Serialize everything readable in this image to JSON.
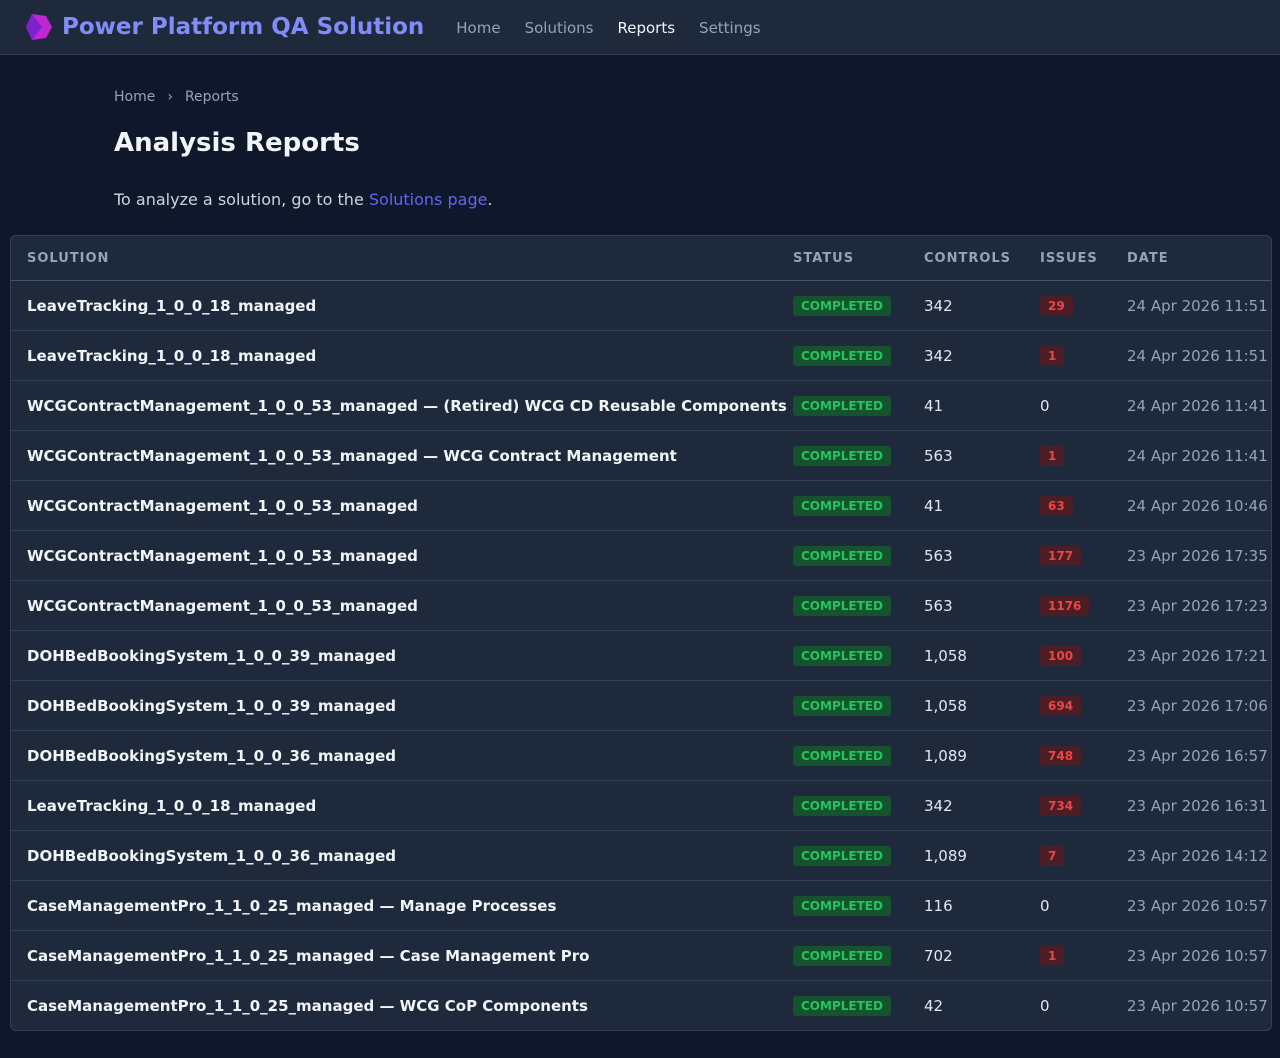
{
  "header": {
    "title": "Power Platform QA Solution",
    "nav": [
      "Home",
      "Solutions",
      "Reports",
      "Settings"
    ],
    "active_nav": 2
  },
  "breadcrumb": {
    "items": [
      "Home",
      "Reports"
    ],
    "separator": "›"
  },
  "page_title": "Analysis Reports",
  "intro": {
    "text": "To analyze a solution, go to the",
    "link": "Solutions page",
    "suffix": "."
  },
  "table": {
    "columns": [
      "SOLUTION",
      "STATUS",
      "CONTROLS",
      "ISSUES",
      "DATE"
    ],
    "rows": [
      [
        "LeaveTracking_1_0_0_18_managed",
        "COMPLETED",
        "342",
        "29",
        "24 Apr 2026 11:51"
      ],
      [
        "LeaveTracking_1_0_0_18_managed",
        "COMPLETED",
        "342",
        "1",
        "24 Apr 2026 11:51"
      ],
      [
        "WCGContractManagement_1_0_0_53_managed — (Retired) WCG CD Reusable Components",
        "COMPLETED",
        "41",
        "0",
        "24 Apr 2026 11:41"
      ],
      [
        "WCGContractManagement_1_0_0_53_managed — WCG Contract Management",
        "COMPLETED",
        "563",
        "1",
        "24 Apr 2026 11:41"
      ],
      [
        "WCGContractManagement_1_0_0_53_managed",
        "COMPLETED",
        "41",
        "63",
        "24 Apr 2026 10:46"
      ],
      [
        "WCGContractManagement_1_0_0_53_managed",
        "COMPLETED",
        "563",
        "177",
        "23 Apr 2026 17:35"
      ],
      [
        "WCGContractManagement_1_0_0_53_managed",
        "COMPLETED",
        "563",
        "1176",
        "23 Apr 2026 17:23"
      ],
      [
        "DOHBedBookingSystem_1_0_0_39_managed",
        "COMPLETED",
        "1,058",
        "100",
        "23 Apr 2026 17:21"
      ],
      [
        "DOHBedBookingSystem_1_0_0_39_managed",
        "COMPLETED",
        "1,058",
        "694",
        "23 Apr 2026 17:06"
      ],
      [
        "DOHBedBookingSystem_1_0_0_36_managed",
        "COMPLETED",
        "1,089",
        "748",
        "23 Apr 2026 16:57"
      ],
      [
        "LeaveTracking_1_0_0_18_managed",
        "COMPLETED",
        "342",
        "734",
        "23 Apr 2026 16:31"
      ],
      [
        "DOHBedBookingSystem_1_0_0_36_managed",
        "COMPLETED",
        "1,089",
        "7",
        "23 Apr 2026 14:12"
      ],
      [
        "CaseManagementPro_1_1_0_25_managed — Manage Processes",
        "COMPLETED",
        "116",
        "0",
        "23 Apr 2026 10:57"
      ],
      [
        "CaseManagementPro_1_1_0_25_managed — Case Management Pro",
        "COMPLETED",
        "702",
        "1",
        "23 Apr 2026 10:57"
      ],
      [
        "CaseManagementPro_1_1_0_25_managed — WCG CoP Components",
        "COMPLETED",
        "42",
        "0",
        "23 Apr 2026 10:57"
      ]
    ]
  }
}
